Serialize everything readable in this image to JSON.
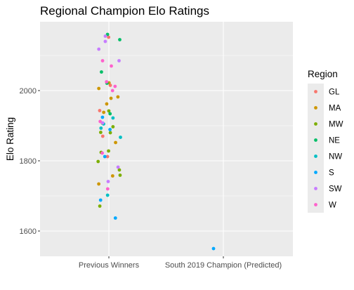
{
  "chart_data": {
    "type": "scatter",
    "title": "Regional Champion Elo Ratings",
    "xlabel": "",
    "ylabel": "Elo Rating",
    "categories": [
      "Previous Winners",
      "South 2019 Champion (Predicted)"
    ],
    "yticks": [
      1600,
      1800,
      2000
    ],
    "ylim": [
      1528,
      2196
    ],
    "grid": true,
    "legend": {
      "title": "Region",
      "position": "right"
    },
    "series": [
      {
        "name": "GL",
        "color": "#F8766D",
        "points": [
          {
            "x": "Previous Winners",
            "y": 2152
          },
          {
            "x": "Previous Winners",
            "y": 2015
          },
          {
            "x": "Previous Winners",
            "y": 1943
          },
          {
            "x": "Previous Winners",
            "y": 1870
          },
          {
            "x": "Previous Winners",
            "y": 1812
          }
        ]
      },
      {
        "name": "MA",
        "color": "#CD9600",
        "points": [
          {
            "x": "Previous Winners",
            "y": 2022
          },
          {
            "x": "Previous Winners",
            "y": 2006
          },
          {
            "x": "Previous Winners",
            "y": 1982
          },
          {
            "x": "Previous Winners",
            "y": 1978
          },
          {
            "x": "Previous Winners",
            "y": 1962
          },
          {
            "x": "Previous Winners",
            "y": 1938
          },
          {
            "x": "Previous Winners",
            "y": 1852
          },
          {
            "x": "Previous Winners",
            "y": 1757
          },
          {
            "x": "Previous Winners",
            "y": 1734
          }
        ]
      },
      {
        "name": "MW",
        "color": "#7CAE00",
        "points": [
          {
            "x": "Previous Winners",
            "y": 1942
          },
          {
            "x": "Previous Winners",
            "y": 1907
          },
          {
            "x": "Previous Winners",
            "y": 1897
          },
          {
            "x": "Previous Winners",
            "y": 1881
          },
          {
            "x": "Previous Winners",
            "y": 1880
          },
          {
            "x": "Previous Winners",
            "y": 1828
          },
          {
            "x": "Previous Winners",
            "y": 1824
          },
          {
            "x": "Previous Winners",
            "y": 1798
          },
          {
            "x": "Previous Winners",
            "y": 1774
          },
          {
            "x": "Previous Winners",
            "y": 1759
          },
          {
            "x": "Previous Winners",
            "y": 1671
          }
        ]
      },
      {
        "name": "NE",
        "color": "#00BE67",
        "points": [
          {
            "x": "Previous Winners",
            "y": 2160
          },
          {
            "x": "Previous Winners",
            "y": 2145
          },
          {
            "x": "Previous Winners",
            "y": 2053
          },
          {
            "x": "Previous Winners",
            "y": 2021
          },
          {
            "x": "Previous Winners",
            "y": 1934
          }
        ]
      },
      {
        "name": "NW",
        "color": "#00BFC4",
        "points": [
          {
            "x": "Previous Winners",
            "y": 1922
          },
          {
            "x": "Previous Winners",
            "y": 1905
          },
          {
            "x": "Previous Winners",
            "y": 1893
          },
          {
            "x": "Previous Winners",
            "y": 1867
          },
          {
            "x": "Previous Winners",
            "y": 1702
          }
        ]
      },
      {
        "name": "S",
        "color": "#00A9FF",
        "points": [
          {
            "x": "Previous Winners",
            "y": 1924
          },
          {
            "x": "Previous Winners",
            "y": 1889
          },
          {
            "x": "Previous Winners",
            "y": 1812
          },
          {
            "x": "Previous Winners",
            "y": 1688
          },
          {
            "x": "Previous Winners",
            "y": 1637
          },
          {
            "x": "South 2019 Champion (Predicted)",
            "y": 1550
          }
        ]
      },
      {
        "name": "SW",
        "color": "#C77CFF",
        "points": [
          {
            "x": "Previous Winners",
            "y": 2155
          },
          {
            "x": "Previous Winners",
            "y": 2140
          },
          {
            "x": "Previous Winners",
            "y": 2118
          },
          {
            "x": "Previous Winners",
            "y": 2085
          },
          {
            "x": "Previous Winners",
            "y": 1908
          },
          {
            "x": "Previous Winners",
            "y": 1782
          },
          {
            "x": "Previous Winners",
            "y": 1741
          }
        ]
      },
      {
        "name": "W",
        "color": "#FF61CC",
        "points": [
          {
            "x": "Previous Winners",
            "y": 2085
          },
          {
            "x": "Previous Winners",
            "y": 2070
          },
          {
            "x": "Previous Winners",
            "y": 2025
          },
          {
            "x": "Previous Winners",
            "y": 2012
          },
          {
            "x": "Previous Winners",
            "y": 2000
          },
          {
            "x": "Previous Winners",
            "y": 1912
          },
          {
            "x": "Previous Winners",
            "y": 1822
          },
          {
            "x": "Previous Winners",
            "y": 1720
          }
        ]
      }
    ]
  },
  "colors": {
    "panel_background": "#EBEBEB",
    "grid_major": "#FFFFFF",
    "legend_key_background": "#EBEBEB",
    "tick_color": "#333333"
  }
}
